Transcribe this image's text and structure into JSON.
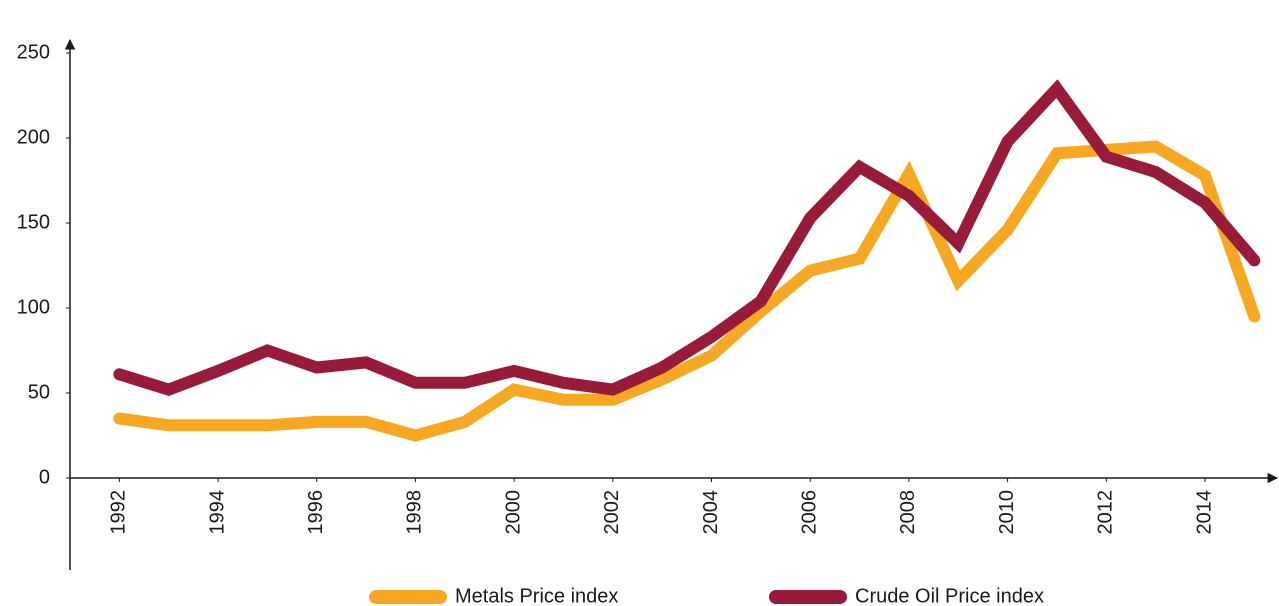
{
  "chart_data": {
    "type": "line",
    "x": [
      1992,
      1993,
      1994,
      1995,
      1996,
      1997,
      1998,
      1999,
      2000,
      2001,
      2002,
      2003,
      2004,
      2005,
      2006,
      2007,
      2008,
      2009,
      2010,
      2011,
      2012,
      2013,
      2014,
      2015
    ],
    "series": [
      {
        "name": "Metals Price index",
        "color": "#f7a823",
        "values": [
          35,
          31,
          31,
          31,
          33,
          33,
          25,
          33,
          52,
          46,
          46,
          58,
          72,
          98,
          122,
          129,
          179,
          116,
          146,
          191,
          193,
          195,
          178,
          95
        ]
      },
      {
        "name": "Crude Oil Price index",
        "color": "#981b3a",
        "values": [
          61,
          52,
          63,
          75,
          65,
          68,
          56,
          56,
          63,
          56,
          52,
          65,
          83,
          104,
          153,
          183,
          166,
          138,
          198,
          229,
          189,
          180,
          162,
          128
        ]
      }
    ],
    "xlim": [
      1991,
      2015.5
    ],
    "xticks": [
      1992,
      1994,
      1996,
      1998,
      2000,
      2002,
      2004,
      2006,
      2008,
      2010,
      2012,
      2014
    ],
    "ylim": [
      0,
      250
    ],
    "yticks": [
      0,
      50,
      100,
      150,
      200,
      250
    ],
    "grid": false,
    "legend": "bottom"
  }
}
